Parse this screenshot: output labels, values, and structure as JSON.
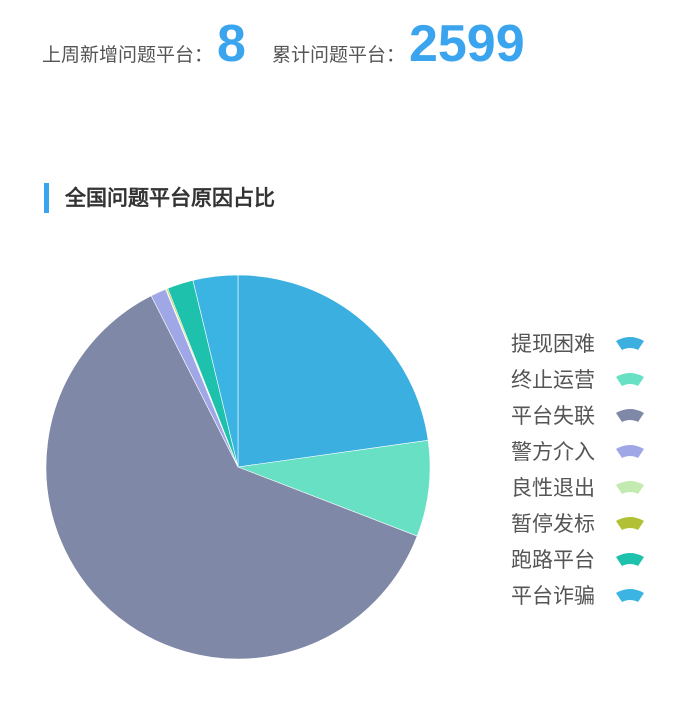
{
  "stats": {
    "weekly_label": "上周新增问题平台：",
    "weekly_value": "8",
    "total_label": "累计问题平台：",
    "total_value": "2599"
  },
  "section_title": "全国问题平台原因占比",
  "chart_data": {
    "type": "pie",
    "title": "全国问题平台原因占比",
    "legend_position": "right",
    "start": "top, clockwise",
    "categories": [
      "提现困难",
      "终止运营",
      "平台失联",
      "警方介入",
      "良性退出",
      "暂停发标",
      "跑路平台",
      "平台诈骗"
    ],
    "values": [
      592,
      210,
      1603,
      34,
      2,
      3,
      57,
      98
    ],
    "colors": [
      "#3bb0e0",
      "#67e0c3",
      "#7f88a6",
      "#a0a7e6",
      "#c3ebb1",
      "#b2c035",
      "#1ec2ac",
      "#3bb4e3"
    ]
  }
}
